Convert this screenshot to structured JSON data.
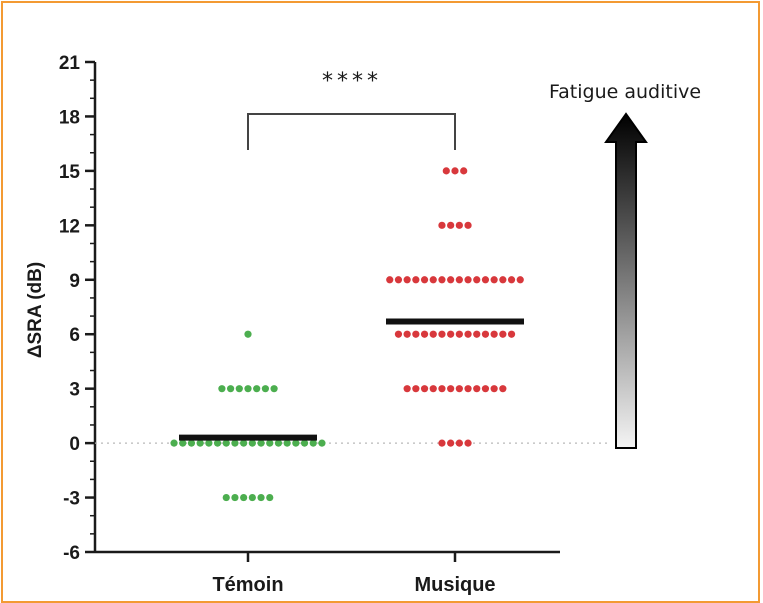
{
  "chart_data": {
    "type": "scatter",
    "ylabel": "ΔSRA (dB)",
    "xlabel": "",
    "ylim": [
      -6,
      21
    ],
    "yticks": [
      -6,
      -3,
      0,
      3,
      6,
      9,
      12,
      15,
      18,
      21
    ],
    "ytick_labels": [
      "-6",
      "-3",
      "0",
      "3",
      "6",
      "9",
      "12",
      "15",
      "18",
      "21"
    ],
    "categories": [
      "Témoin",
      "Musique"
    ],
    "zero_line": "dotted",
    "series": [
      {
        "category": "Témoin",
        "color": "#4cae4f",
        "mean": 0.3,
        "groups": [
          {
            "value": 6,
            "count": 1
          },
          {
            "value": 3,
            "count": 7
          },
          {
            "value": 0,
            "count": 18
          },
          {
            "value": -3,
            "count": 6
          }
        ]
      },
      {
        "category": "Musique",
        "color": "#d8383c",
        "mean": 6.7,
        "groups": [
          {
            "value": 15,
            "count": 3
          },
          {
            "value": 12,
            "count": 4
          },
          {
            "value": 9,
            "count": 16
          },
          {
            "value": 6,
            "count": 14
          },
          {
            "value": 3,
            "count": 12
          },
          {
            "value": 0,
            "count": 4
          }
        ]
      }
    ],
    "significance": "****",
    "arrow_label": "Fatigue auditive"
  }
}
